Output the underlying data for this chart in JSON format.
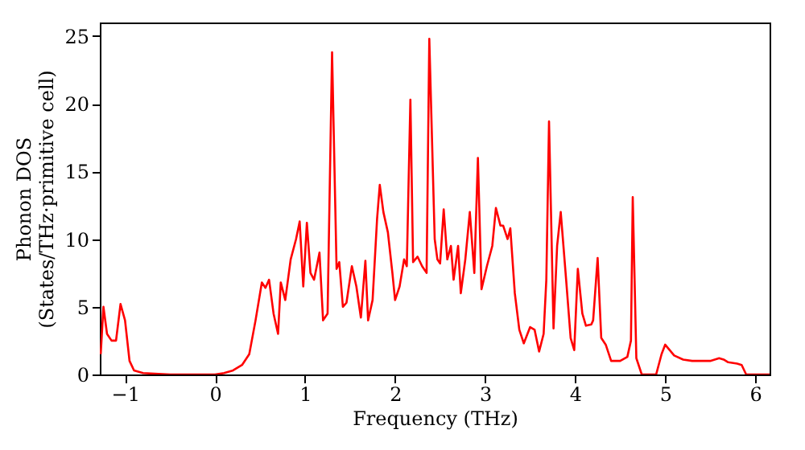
{
  "chart_data": {
    "type": "line",
    "xlabel": "Frequency (THz)",
    "ylabel": "Phonon DOS\n(States/THz·primitive cell)",
    "x": [
      -1.27,
      -1.24,
      -1.2,
      -1.15,
      -1.1,
      -1.05,
      -1.0,
      -0.95,
      -0.9,
      -0.8,
      -0.5,
      0,
      0.1,
      0.2,
      0.3,
      0.38,
      0.45,
      0.52,
      0.56,
      0.6,
      0.65,
      0.7,
      0.73,
      0.78,
      0.84,
      0.9,
      0.94,
      0.98,
      1.02,
      1.06,
      1.1,
      1.16,
      1.2,
      1.25,
      1.3,
      1.35,
      1.38,
      1.42,
      1.46,
      1.52,
      1.57,
      1.62,
      1.67,
      1.7,
      1.75,
      1.8,
      1.83,
      1.87,
      1.92,
      1.97,
      2.0,
      2.05,
      2.1,
      2.13,
      2.17,
      2.2,
      2.25,
      2.3,
      2.35,
      2.38,
      2.44,
      2.47,
      2.5,
      2.54,
      2.58,
      2.62,
      2.65,
      2.7,
      2.73,
      2.78,
      2.83,
      2.88,
      2.92,
      2.96,
      3.02,
      3.08,
      3.12,
      3.17,
      3.2,
      3.25,
      3.28,
      3.33,
      3.38,
      3.43,
      3.5,
      3.55,
      3.6,
      3.65,
      3.68,
      3.71,
      3.76,
      3.8,
      3.84,
      3.9,
      3.95,
      3.99,
      4.03,
      4.08,
      4.12,
      4.18,
      4.2,
      4.25,
      4.29,
      4.34,
      4.4,
      4.5,
      4.58,
      4.62,
      4.64,
      4.68,
      4.74,
      4.9,
      4.96,
      5.0,
      5.05,
      5.1,
      5.2,
      5.3,
      5.4,
      5.5,
      5.6,
      5.65,
      5.7,
      5.8,
      5.85,
      5.9,
      6.16
    ],
    "series": [
      {
        "color": "#ff0000",
        "values": [
          1.5,
          5,
          3,
          2.5,
          2.5,
          5.2,
          4,
          1,
          0.3,
          0.1,
          0,
          0,
          0.1,
          0.3,
          0.7,
          1.5,
          4,
          6.8,
          6.4,
          7,
          4.5,
          3,
          6.8,
          5.5,
          8.5,
          10,
          11.3,
          6.5,
          11.2,
          7.5,
          7,
          9,
          4,
          4.5,
          23.8,
          7.8,
          8.3,
          5,
          5.3,
          8,
          6.5,
          4.2,
          8.4,
          4,
          5.5,
          11.5,
          14,
          12,
          10.5,
          7.5,
          5.5,
          6.5,
          8.5,
          8,
          20.3,
          8.3,
          8.7,
          8,
          7.5,
          24.8,
          10,
          8.5,
          8.2,
          12.2,
          8.5,
          9.5,
          7,
          9.5,
          6,
          8.5,
          12,
          7.5,
          16,
          6.3,
          8,
          9.5,
          12.3,
          11,
          11,
          10,
          10.8,
          6,
          3.3,
          2.3,
          3.5,
          3.3,
          1.7,
          3,
          7,
          18.7,
          3.4,
          9.5,
          12,
          7,
          2.7,
          1.8,
          7.8,
          4.5,
          3.6,
          3.7,
          4,
          8.6,
          2.7,
          2.2,
          1,
          1,
          1.3,
          2.5,
          13.1,
          1.2,
          0,
          0,
          1.5,
          2.2,
          1.8,
          1.4,
          1.1,
          1.0,
          1.0,
          1.0,
          1.2,
          1.1,
          0.9,
          0.8,
          0.7,
          0,
          0
        ]
      }
    ],
    "xlim": [
      -1.28,
      6.16
    ],
    "ylim": [
      0,
      26
    ],
    "xticks": [
      -1,
      0,
      1,
      2,
      3,
      4,
      5,
      6
    ],
    "yticks": [
      0,
      5,
      10,
      15,
      20,
      25
    ],
    "grid": false
  }
}
